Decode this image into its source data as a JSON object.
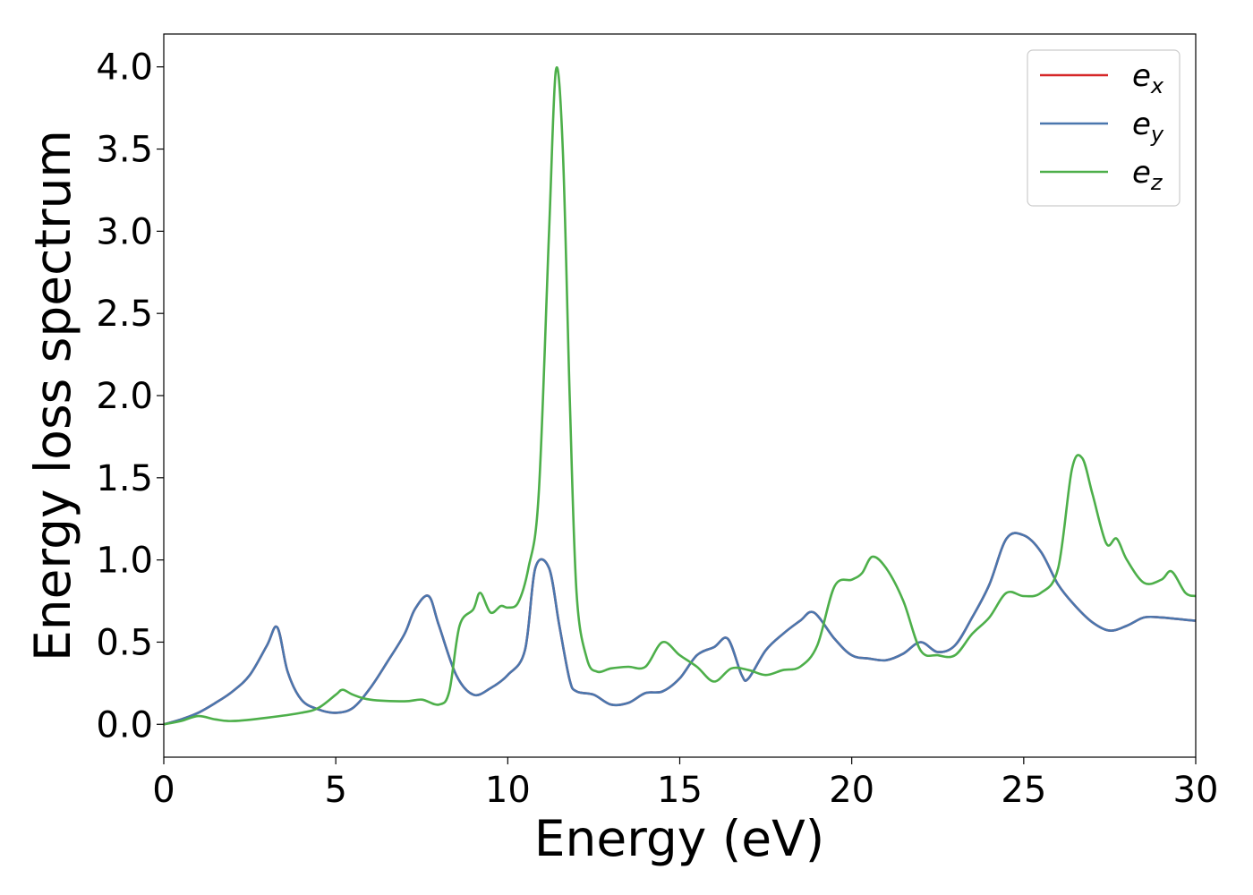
{
  "chart_data": {
    "type": "line",
    "title": "",
    "xlabel": "Energy (eV)",
    "ylabel": "Energy loss spectrum",
    "xlim": [
      0,
      30
    ],
    "ylim": [
      -0.2,
      4.2
    ],
    "xticks": [
      0,
      5,
      10,
      15,
      20,
      25,
      30
    ],
    "yticks": [
      0.0,
      0.5,
      1.0,
      1.5,
      2.0,
      2.5,
      3.0,
      3.5,
      4.0
    ],
    "xtick_labels": [
      "0",
      "5",
      "10",
      "15",
      "20",
      "25",
      "30"
    ],
    "ytick_labels": [
      "0.0",
      "0.5",
      "1.0",
      "1.5",
      "2.0",
      "2.5",
      "3.0",
      "3.5",
      "4.0"
    ],
    "grid": false,
    "legend_position": "top-right",
    "series": [
      {
        "name": "e_x",
        "label_base": "e",
        "label_sub": "x",
        "color": "#d62728",
        "x": [
          0,
          0.5,
          1.0,
          1.5,
          2.0,
          2.5,
          3.0,
          3.3,
          3.6,
          4.0,
          4.5,
          5.0,
          5.5,
          6.0,
          6.5,
          7.0,
          7.3,
          7.7,
          8.0,
          8.5,
          9.0,
          9.5,
          10.0,
          10.5,
          10.8,
          11.2,
          11.5,
          11.8,
          12.0,
          12.5,
          13.0,
          13.5,
          14.0,
          14.5,
          15.0,
          15.5,
          16.0,
          16.4,
          16.8,
          17.0,
          17.5,
          18.0,
          18.5,
          18.9,
          19.5,
          20.0,
          20.5,
          21.0,
          21.5,
          22.0,
          22.5,
          23.0,
          23.5,
          24.0,
          24.5,
          25.0,
          25.5,
          26.0,
          26.5,
          27.0,
          27.5,
          28.0,
          28.5,
          29.0,
          29.5,
          30.0
        ],
        "y": [
          0.0,
          0.03,
          0.07,
          0.13,
          0.2,
          0.3,
          0.48,
          0.59,
          0.32,
          0.15,
          0.09,
          0.07,
          0.1,
          0.22,
          0.38,
          0.55,
          0.7,
          0.78,
          0.6,
          0.3,
          0.18,
          0.22,
          0.3,
          0.45,
          0.95,
          0.95,
          0.6,
          0.27,
          0.2,
          0.18,
          0.12,
          0.13,
          0.19,
          0.2,
          0.28,
          0.42,
          0.47,
          0.52,
          0.3,
          0.28,
          0.45,
          0.55,
          0.63,
          0.68,
          0.52,
          0.42,
          0.4,
          0.39,
          0.43,
          0.5,
          0.44,
          0.48,
          0.65,
          0.85,
          1.13,
          1.15,
          1.05,
          0.85,
          0.72,
          0.62,
          0.57,
          0.6,
          0.65,
          0.65,
          0.64,
          0.63
        ]
      },
      {
        "name": "e_y",
        "label_base": "e",
        "label_sub": "y",
        "color": "#4a77ae",
        "x": [
          0,
          0.5,
          1.0,
          1.5,
          2.0,
          2.5,
          3.0,
          3.3,
          3.6,
          4.0,
          4.5,
          5.0,
          5.5,
          6.0,
          6.5,
          7.0,
          7.3,
          7.7,
          8.0,
          8.5,
          9.0,
          9.5,
          10.0,
          10.5,
          10.8,
          11.2,
          11.5,
          11.8,
          12.0,
          12.5,
          13.0,
          13.5,
          14.0,
          14.5,
          15.0,
          15.5,
          16.0,
          16.4,
          16.8,
          17.0,
          17.5,
          18.0,
          18.5,
          18.9,
          19.5,
          20.0,
          20.5,
          21.0,
          21.5,
          22.0,
          22.5,
          23.0,
          23.5,
          24.0,
          24.5,
          25.0,
          25.5,
          26.0,
          26.5,
          27.0,
          27.5,
          28.0,
          28.5,
          29.0,
          29.5,
          30.0
        ],
        "y": [
          0.0,
          0.03,
          0.07,
          0.13,
          0.2,
          0.3,
          0.48,
          0.59,
          0.32,
          0.15,
          0.09,
          0.07,
          0.1,
          0.22,
          0.38,
          0.55,
          0.7,
          0.78,
          0.6,
          0.3,
          0.18,
          0.22,
          0.3,
          0.45,
          0.95,
          0.95,
          0.6,
          0.27,
          0.2,
          0.18,
          0.12,
          0.13,
          0.19,
          0.2,
          0.28,
          0.42,
          0.47,
          0.52,
          0.3,
          0.28,
          0.45,
          0.55,
          0.63,
          0.68,
          0.52,
          0.42,
          0.4,
          0.39,
          0.43,
          0.5,
          0.44,
          0.48,
          0.65,
          0.85,
          1.13,
          1.15,
          1.05,
          0.85,
          0.72,
          0.62,
          0.57,
          0.6,
          0.65,
          0.65,
          0.64,
          0.63
        ]
      },
      {
        "name": "e_z",
        "label_base": "e",
        "label_sub": "z",
        "color": "#4daf4a",
        "x": [
          0,
          0.5,
          1.0,
          1.5,
          2.0,
          3.0,
          4.0,
          4.5,
          5.0,
          5.2,
          5.5,
          6.0,
          7.0,
          7.5,
          8.0,
          8.3,
          8.6,
          9.0,
          9.2,
          9.5,
          9.8,
          10.0,
          10.3,
          10.6,
          10.9,
          11.2,
          11.4,
          11.6,
          11.8,
          12.0,
          12.3,
          12.6,
          13.0,
          13.5,
          14.0,
          14.5,
          15.0,
          15.5,
          16.0,
          16.5,
          17.0,
          17.5,
          18.0,
          18.5,
          19.0,
          19.5,
          20.0,
          20.3,
          20.6,
          21.0,
          21.5,
          22.0,
          22.5,
          23.0,
          23.5,
          24.0,
          24.5,
          25.0,
          25.5,
          26.0,
          26.4,
          26.7,
          27.0,
          27.4,
          27.7,
          28.0,
          28.5,
          29.0,
          29.3,
          29.7,
          30.0
        ],
        "y": [
          0.0,
          0.02,
          0.05,
          0.03,
          0.02,
          0.04,
          0.07,
          0.1,
          0.18,
          0.21,
          0.18,
          0.15,
          0.14,
          0.15,
          0.12,
          0.2,
          0.6,
          0.7,
          0.8,
          0.68,
          0.72,
          0.71,
          0.74,
          0.95,
          1.4,
          3.0,
          3.98,
          3.5,
          2.0,
          0.8,
          0.4,
          0.32,
          0.34,
          0.35,
          0.35,
          0.5,
          0.42,
          0.35,
          0.26,
          0.34,
          0.33,
          0.3,
          0.33,
          0.35,
          0.48,
          0.84,
          0.88,
          0.92,
          1.02,
          0.95,
          0.75,
          0.45,
          0.42,
          0.42,
          0.55,
          0.65,
          0.8,
          0.78,
          0.8,
          0.95,
          1.55,
          1.62,
          1.4,
          1.1,
          1.13,
          1.0,
          0.86,
          0.88,
          0.93,
          0.8,
          0.78
        ]
      }
    ]
  }
}
